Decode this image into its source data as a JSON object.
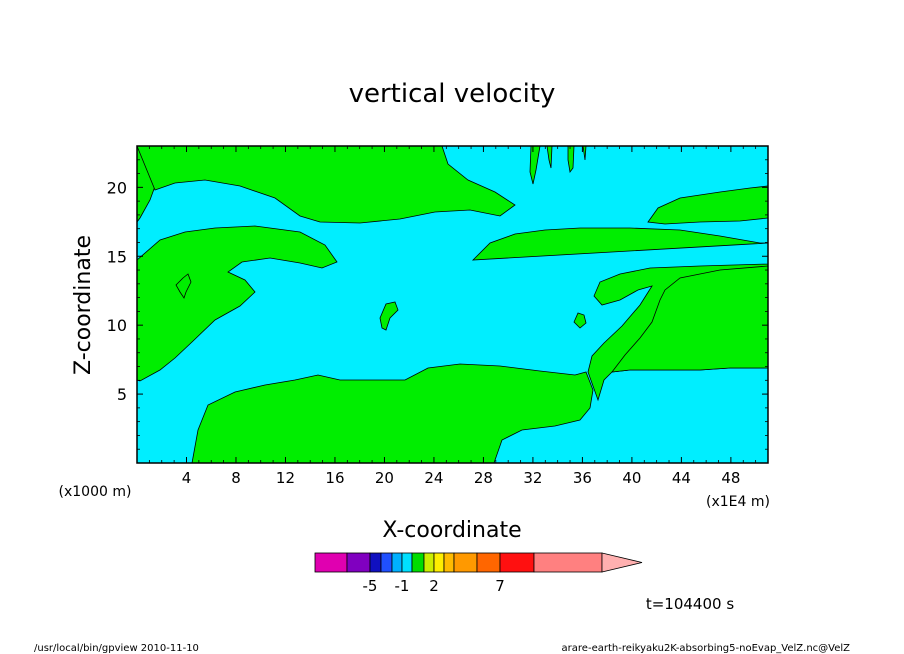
{
  "chart_data": {
    "type": "contour",
    "title": "vertical velocity",
    "xlabel": "X-coordinate",
    "ylabel": "Z-coordinate",
    "x_units_left": "(x1000 m)",
    "x_units_right": "(x1E4 m)",
    "xlim": [
      0,
      51
    ],
    "ylim": [
      0,
      23
    ],
    "x_ticks": [
      4,
      8,
      12,
      16,
      20,
      24,
      28,
      32,
      36,
      40,
      44,
      48
    ],
    "y_ticks": [
      5,
      10,
      15,
      20
    ],
    "time_label": "t=104400 s",
    "colorbar": {
      "colors": [
        "#e000b0",
        "#8000c0",
        "#1010c0",
        "#2050ff",
        "#00b0ff",
        "#00e0ff",
        "#00dd00",
        "#ccee00",
        "#ffee00",
        "#ffbb00",
        "#ff9900",
        "#ff6600",
        "#ff1010",
        "#ff8080"
      ],
      "extend_color": "#ffb0b0",
      "labels": [
        "-5",
        "-1",
        "2",
        "7"
      ]
    },
    "regions": {
      "background_color": "#00eeff",
      "fill_color": "#00ee00"
    }
  },
  "footer": {
    "left": "/usr/local/bin/gpview   2010-11-10",
    "right": "arare-earth-reikyaku2K-absorbing5-noEvap_VelZ.nc@VelZ"
  }
}
